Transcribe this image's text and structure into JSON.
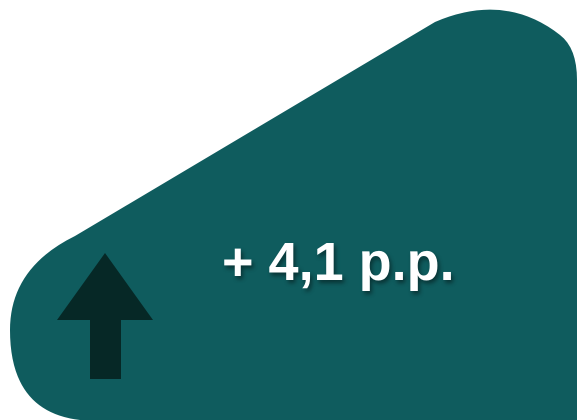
{
  "indicator": {
    "value_text": "+ 4,1 p.p.",
    "direction": "up",
    "icon": "arrow-up-icon",
    "colors": {
      "panel": "#0f5c5e",
      "arrow": "#062826",
      "text": "#ffffff"
    }
  }
}
